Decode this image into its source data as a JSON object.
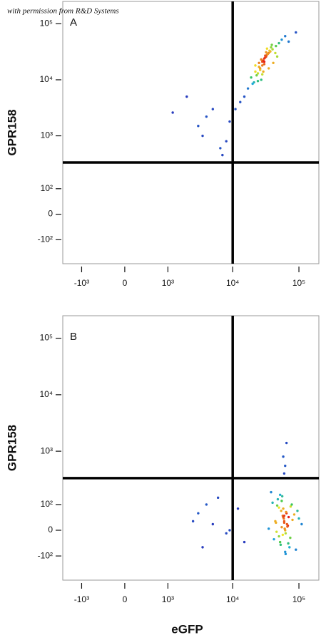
{
  "caption": "with permission from R&D Systems",
  "chart_data": [
    {
      "type": "scatter",
      "label": "A",
      "ylabel": "GPR158",
      "xscale": "biexponential",
      "yscale": "biexponential",
      "xlim": [
        -2000,
        200000
      ],
      "ylim": [
        -300,
        250000
      ],
      "xticks": [
        {
          "value": -1000,
          "label": "-10³"
        },
        0,
        {
          "value": 1000,
          "label": "10³"
        },
        {
          "value": 10000,
          "label": "10⁴"
        },
        {
          "value": 100000,
          "label": "10⁵"
        }
      ],
      "yticks": [
        {
          "value": -100,
          "label": "-10²"
        },
        0,
        {
          "value": 100,
          "label": "10²"
        },
        {
          "value": 1000,
          "label": "10³"
        },
        {
          "value": 10000,
          "label": "10⁴"
        },
        {
          "value": 100000,
          "label": "10⁵"
        }
      ],
      "gate": {
        "x": 10000,
        "y": 330
      },
      "x": [
        28000,
        31000,
        25000,
        35000,
        22000,
        40000,
        30000,
        27000,
        33000,
        19000,
        45000,
        26000,
        29000,
        37000,
        24000,
        32000,
        21000,
        50000,
        28000,
        34000,
        23000,
        41000,
        30000,
        26000,
        38000,
        17000,
        55000,
        31000,
        27000,
        36000,
        20000,
        44000,
        29000,
        25000,
        33000,
        15000,
        62000,
        30000,
        28000,
        39000,
        22000,
        47000,
        32000,
        24000,
        35000,
        13000,
        70000,
        27000,
        5000,
        3000,
        8000,
        2000,
        6500,
        4000,
        9000,
        1200,
        7000,
        3500,
        90000,
        11000
      ],
      "y": [
        21000,
        25000,
        17000,
        30000,
        14000,
        35000,
        19000,
        23000,
        28000,
        11000,
        40000,
        16000,
        22000,
        32000,
        13000,
        26000,
        9000,
        45000,
        18000,
        29000,
        12000,
        20000,
        24000,
        15000,
        38000,
        7000,
        52000,
        27000,
        10000,
        33000,
        8500,
        30000,
        14000,
        20000,
        36000,
        5000,
        60000,
        21000,
        12500,
        42000,
        18000,
        26000,
        31000,
        9500,
        16000,
        4000,
        48000,
        23000,
        3000,
        1500,
        800,
        5000,
        600,
        2200,
        1800,
        2600,
        450,
        1000,
        70000,
        3000
      ]
    },
    {
      "type": "scatter",
      "label": "B",
      "ylabel": "GPR158",
      "xlabel": "eGFP",
      "xscale": "biexponential",
      "yscale": "biexponential",
      "xlim": [
        -2000,
        200000
      ],
      "ylim": [
        -300,
        250000
      ],
      "xticks": [
        {
          "value": -1000,
          "label": "-10³"
        },
        0,
        {
          "value": 1000,
          "label": "10³"
        },
        {
          "value": 10000,
          "label": "10⁴"
        },
        {
          "value": 100000,
          "label": "10⁵"
        }
      ],
      "yticks": [
        {
          "value": -100,
          "label": "-10²"
        },
        0,
        {
          "value": 100,
          "label": "10²"
        },
        {
          "value": 1000,
          "label": "10³"
        },
        {
          "value": 10000,
          "label": "10⁴"
        },
        {
          "value": 100000,
          "label": "10⁵"
        }
      ],
      "gate": {
        "x": 10000,
        "y": 330
      },
      "x": [
        60000,
        55000,
        65000,
        50000,
        70000,
        58000,
        62000,
        45000,
        75000,
        52000,
        68000,
        57000,
        63000,
        40000,
        80000,
        54000,
        61000,
        48000,
        72000,
        59000,
        66000,
        42000,
        85000,
        56000,
        64000,
        46000,
        78000,
        53000,
        60000,
        38000,
        90000,
        58000,
        67000,
        50000,
        74000,
        55000,
        62000,
        44000,
        95000,
        57000,
        60000,
        35000,
        100000,
        52000,
        69000,
        47000,
        110000,
        63000,
        3000,
        5000,
        4000,
        8000,
        2500,
        6000,
        9000,
        12000,
        15000,
        3500,
        60000,
        58000,
        65000,
        62000
      ],
      "y": [
        30,
        10,
        60,
        -20,
        45,
        80,
        0,
        25,
        90,
        -40,
        15,
        50,
        -10,
        110,
        35,
        70,
        5,
        130,
        -60,
        40,
        20,
        -30,
        55,
        150,
        65,
        -5,
        100,
        -50,
        25,
        180,
        -70,
        45,
        12,
        85,
        -25,
        120,
        -80,
        30,
        70,
        -15,
        50,
        5,
        40,
        160,
        -45,
        95,
        20,
        -90,
        60,
        20,
        100,
        -10,
        30,
        140,
        0,
        80,
        -40,
        -60,
        400,
        800,
        1400,
        550
      ]
    }
  ]
}
